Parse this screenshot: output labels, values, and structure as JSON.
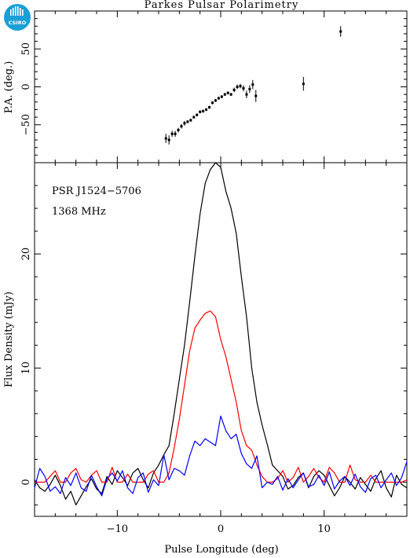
{
  "title": "Parkes Pulsar Polarimetry",
  "logo": {
    "text": "CSIRO",
    "color": "#1a9fd6"
  },
  "colors": {
    "total": "#000000",
    "linear": "#ff0000",
    "circular": "#0000ff"
  },
  "chart_data": [
    {
      "type": "scatter",
      "panel": "position-angle",
      "xlabel": "",
      "ylabel": "P.A. (deg.)",
      "xlim": [
        -18,
        18
      ],
      "ylim": [
        -100,
        100
      ],
      "yticks": [
        -50,
        0,
        50
      ],
      "yticklabels": [
        "−50",
        "0",
        "50"
      ],
      "points": [
        {
          "x": -5.3,
          "y": -68,
          "err": 6
        },
        {
          "x": -5.0,
          "y": -70,
          "err": 6
        },
        {
          "x": -4.7,
          "y": -62,
          "err": 4
        },
        {
          "x": -4.4,
          "y": -62,
          "err": 4
        },
        {
          "x": -4.1,
          "y": -57,
          "err": 3
        },
        {
          "x": -3.8,
          "y": -52,
          "err": 3
        },
        {
          "x": -3.5,
          "y": -48,
          "err": 3
        },
        {
          "x": -3.2,
          "y": -46,
          "err": 2
        },
        {
          "x": -2.9,
          "y": -44,
          "err": 2
        },
        {
          "x": -2.6,
          "y": -40,
          "err": 2
        },
        {
          "x": -2.3,
          "y": -37,
          "err": 2
        },
        {
          "x": -2.0,
          "y": -33,
          "err": 2
        },
        {
          "x": -1.7,
          "y": -32,
          "err": 2
        },
        {
          "x": -1.4,
          "y": -30,
          "err": 2
        },
        {
          "x": -1.1,
          "y": -27,
          "err": 2
        },
        {
          "x": -0.8,
          "y": -21,
          "err": 2
        },
        {
          "x": -0.5,
          "y": -18,
          "err": 2
        },
        {
          "x": -0.2,
          "y": -15,
          "err": 2
        },
        {
          "x": 0.1,
          "y": -13,
          "err": 2
        },
        {
          "x": 0.4,
          "y": -10,
          "err": 2
        },
        {
          "x": 0.7,
          "y": -8,
          "err": 2
        },
        {
          "x": 1.0,
          "y": -10,
          "err": 2
        },
        {
          "x": 1.3,
          "y": -4,
          "err": 3
        },
        {
          "x": 1.6,
          "y": 0,
          "err": 3
        },
        {
          "x": 1.9,
          "y": 1,
          "err": 3
        },
        {
          "x": 2.2,
          "y": -2,
          "err": 4
        },
        {
          "x": 2.5,
          "y": -10,
          "err": 5
        },
        {
          "x": 2.8,
          "y": -3,
          "err": 5
        },
        {
          "x": 3.1,
          "y": 3,
          "err": 6
        },
        {
          "x": 3.4,
          "y": -12,
          "err": 8
        },
        {
          "x": 8.0,
          "y": 4,
          "err": 9
        },
        {
          "x": 11.6,
          "y": 73,
          "err": 7
        }
      ]
    },
    {
      "type": "line",
      "panel": "flux",
      "xlabel": "Pulse Longitude (deg)",
      "ylabel": "Flux Density (mJy)",
      "xlim": [
        -18,
        18
      ],
      "ylim": [
        -3,
        28
      ],
      "xticks": [
        -10,
        0,
        10
      ],
      "xticklabels": [
        "−10",
        "0",
        "10"
      ],
      "yticks": [
        0,
        10,
        20
      ],
      "yticklabels": [
        "0",
        "10",
        "20"
      ],
      "annotations": [
        "PSR J1524−5706",
        "1368 MHz"
      ],
      "series": [
        {
          "key": "total",
          "x": [
            -18,
            -17.5,
            -17,
            -16.5,
            -16,
            -15.5,
            -15,
            -14.5,
            -14,
            -13.5,
            -13,
            -12.5,
            -12,
            -11.5,
            -11,
            -10.5,
            -10,
            -9.5,
            -9,
            -8.5,
            -8,
            -7.5,
            -7,
            -6.5,
            -6,
            -5.5,
            -5,
            -4.5,
            -4,
            -3.5,
            -3,
            -2.5,
            -2,
            -1.5,
            -1,
            -0.5,
            0,
            0.5,
            1,
            1.5,
            2,
            2.5,
            3,
            3.5,
            4,
            4.5,
            5,
            5.5,
            6,
            6.5,
            7,
            7.5,
            8,
            8.5,
            9,
            9.5,
            10,
            10.5,
            11,
            11.5,
            12,
            12.5,
            13,
            13.5,
            14,
            14.5,
            15,
            15.5,
            16,
            16.5,
            17,
            17.5,
            18
          ],
          "y": [
            0.2,
            -0.5,
            -0.8,
            -0.2,
            0.6,
            -0.3,
            -1.5,
            -0.8,
            -2.0,
            -1.2,
            -0.4,
            0.3,
            -0.6,
            -1.0,
            0.5,
            -0.2,
            1.0,
            0.4,
            -0.3,
            0.8,
            1.2,
            0.2,
            -0.5,
            0.8,
            1.5,
            2.4,
            3.2,
            6.0,
            9.0,
            12.0,
            15.8,
            19.8,
            23.5,
            26.2,
            27.4,
            28.0,
            27.6,
            25.5,
            24.0,
            21.8,
            18.0,
            14.5,
            10.0,
            7.0,
            5.0,
            3.3,
            1.5,
            1.0,
            0.5,
            -0.6,
            -0.3,
            0.4,
            0.8,
            -0.5,
            0.5,
            1.0,
            0.6,
            -0.3,
            -1.2,
            -0.5,
            0.5,
            0.0,
            -0.6,
            0.4,
            -0.2,
            -0.8,
            0.3,
            1.0,
            -0.5,
            -1.3,
            0.6,
            -0.2,
            -0.5
          ]
        },
        {
          "key": "linear",
          "x": [
            -18,
            -17.5,
            -17,
            -16.5,
            -16,
            -15.5,
            -15,
            -14.5,
            -14,
            -13.5,
            -13,
            -12.5,
            -12,
            -11.5,
            -11,
            -10.5,
            -10,
            -9.5,
            -9,
            -8.5,
            -8,
            -7.5,
            -7,
            -6.5,
            -6,
            -5.5,
            -5,
            -4.5,
            -4,
            -3.5,
            -3,
            -2.5,
            -2,
            -1.5,
            -1,
            -0.5,
            0,
            0.5,
            1,
            1.5,
            2,
            2.5,
            3,
            3.5,
            4,
            4.5,
            5,
            5.5,
            6,
            6.5,
            7,
            7.5,
            8,
            8.5,
            9,
            9.5,
            10,
            10.5,
            11,
            11.5,
            12,
            12.5,
            13,
            13.5,
            14,
            14.5,
            15,
            15.5,
            16,
            16.5,
            17,
            17.5,
            18
          ],
          "y": [
            0.0,
            0.0,
            0.0,
            0.5,
            1.0,
            0.0,
            0.0,
            0.8,
            1.2,
            0.2,
            0.0,
            0.6,
            1.0,
            0.0,
            0.0,
            1.3,
            0.0,
            0.0,
            0.7,
            0.0,
            0.0,
            0.0,
            0.7,
            1.0,
            0.0,
            0.0,
            0.8,
            3.0,
            5.5,
            8.5,
            11.5,
            13.5,
            14.2,
            14.8,
            15.0,
            14.5,
            12.5,
            11.0,
            9.0,
            7.0,
            4.5,
            3.2,
            2.8,
            1.5,
            0.5,
            0.0,
            0.0,
            0.3,
            1.0,
            0.0,
            0.4,
            1.3,
            0.0,
            0.5,
            1.2,
            0.4,
            0.0,
            1.3,
            0.8,
            0.0,
            0.0,
            1.5,
            0.2,
            0.0,
            0.0,
            0.6,
            0.0,
            0.0,
            0.0,
            0.0,
            0.0,
            0.0,
            0.2
          ]
        },
        {
          "key": "circular",
          "x": [
            -18,
            -17.5,
            -17,
            -16.5,
            -16,
            -15.5,
            -15,
            -14.5,
            -14,
            -13.5,
            -13,
            -12.5,
            -12,
            -11.5,
            -11,
            -10.5,
            -10,
            -9.5,
            -9,
            -8.5,
            -8,
            -7.5,
            -7,
            -6.5,
            -6,
            -5.5,
            -5,
            -4.5,
            -4,
            -3.5,
            -3,
            -2.5,
            -2,
            -1.5,
            -1,
            -0.5,
            0,
            0.5,
            1,
            1.5,
            2,
            2.5,
            3,
            3.5,
            4,
            4.5,
            5,
            5.5,
            6,
            6.5,
            7,
            7.5,
            8,
            8.5,
            9,
            9.5,
            10,
            10.5,
            11,
            11.5,
            12,
            12.5,
            13,
            13.5,
            14,
            14.5,
            15,
            15.5,
            16,
            16.5,
            17,
            17.5,
            18
          ],
          "y": [
            -0.5,
            1.2,
            0.5,
            -0.8,
            -0.4,
            -1.0,
            0.4,
            -0.3,
            0.8,
            -0.5,
            -0.8,
            0.6,
            -0.4,
            -1.2,
            0.3,
            0.8,
            0.1,
            1.0,
            -0.5,
            -1.0,
            0.4,
            0.8,
            -0.9,
            0.2,
            -0.3,
            2.4,
            0.2,
            1.2,
            1.0,
            0.6,
            2.3,
            3.6,
            3.2,
            3.8,
            3.5,
            3.2,
            5.8,
            4.5,
            3.8,
            4.2,
            2.5,
            1.6,
            1.2,
            2.3,
            -0.5,
            0.0,
            -0.2,
            0.5,
            -0.7,
            0.3,
            -0.5,
            0.2,
            0.8,
            -0.4,
            -0.2,
            0.6,
            -0.3,
            0.9,
            -0.6,
            0.1,
            0.5,
            -0.3,
            0.7,
            -0.4,
            -0.9,
            0.3,
            0.6,
            -0.5,
            0.2,
            0.8,
            -0.3,
            0.4,
            1.8
          ]
        }
      ]
    }
  ]
}
